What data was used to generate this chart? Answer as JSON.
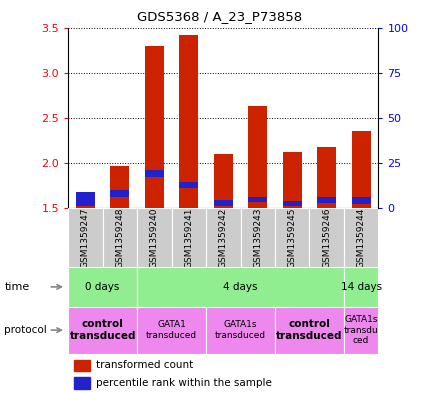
{
  "title": "GDS5368 / A_23_P73858",
  "samples": [
    "GSM1359247",
    "GSM1359248",
    "GSM1359240",
    "GSM1359241",
    "GSM1359242",
    "GSM1359243",
    "GSM1359245",
    "GSM1359246",
    "GSM1359244"
  ],
  "transformed_counts": [
    1.65,
    1.97,
    3.3,
    3.42,
    2.1,
    2.63,
    2.12,
    2.18,
    2.35
  ],
  "percentile_bottoms": [
    1.52,
    1.62,
    1.85,
    1.73,
    1.53,
    1.57,
    1.53,
    1.56,
    1.55
  ],
  "percentile_tops": [
    1.68,
    1.7,
    1.92,
    1.79,
    1.59,
    1.63,
    1.58,
    1.62,
    1.62
  ],
  "bar_bottom": 1.5,
  "ylim": [
    1.5,
    3.5
  ],
  "yticks_left": [
    1.5,
    2.0,
    2.5,
    3.0,
    3.5
  ],
  "yticks_right": [
    0,
    25,
    50,
    75,
    100
  ],
  "time_groups": [
    {
      "label": "0 days",
      "start": 0,
      "end": 2
    },
    {
      "label": "4 days",
      "start": 2,
      "end": 8
    },
    {
      "label": "14 days",
      "start": 8,
      "end": 9
    }
  ],
  "protocol_groups": [
    {
      "label": "control\ntransduced",
      "start": 0,
      "end": 2,
      "bold": true
    },
    {
      "label": "GATA1\ntransduced",
      "start": 2,
      "end": 4,
      "bold": false
    },
    {
      "label": "GATA1s\ntransduced",
      "start": 4,
      "end": 6,
      "bold": false
    },
    {
      "label": "control\ntransduced",
      "start": 6,
      "end": 8,
      "bold": true
    },
    {
      "label": "GATA1s\ntransdu\nced",
      "start": 8,
      "end": 9,
      "bold": false
    }
  ],
  "bar_color": "#cc2200",
  "percentile_color": "#2222cc",
  "bar_width": 0.55,
  "time_color": "#90ee90",
  "protocol_color": "#ee88ee",
  "sample_bg": "#cccccc",
  "legend_red_label": "transformed count",
  "legend_blue_label": "percentile rank within the sample",
  "time_label": "time",
  "protocol_label": "protocol"
}
